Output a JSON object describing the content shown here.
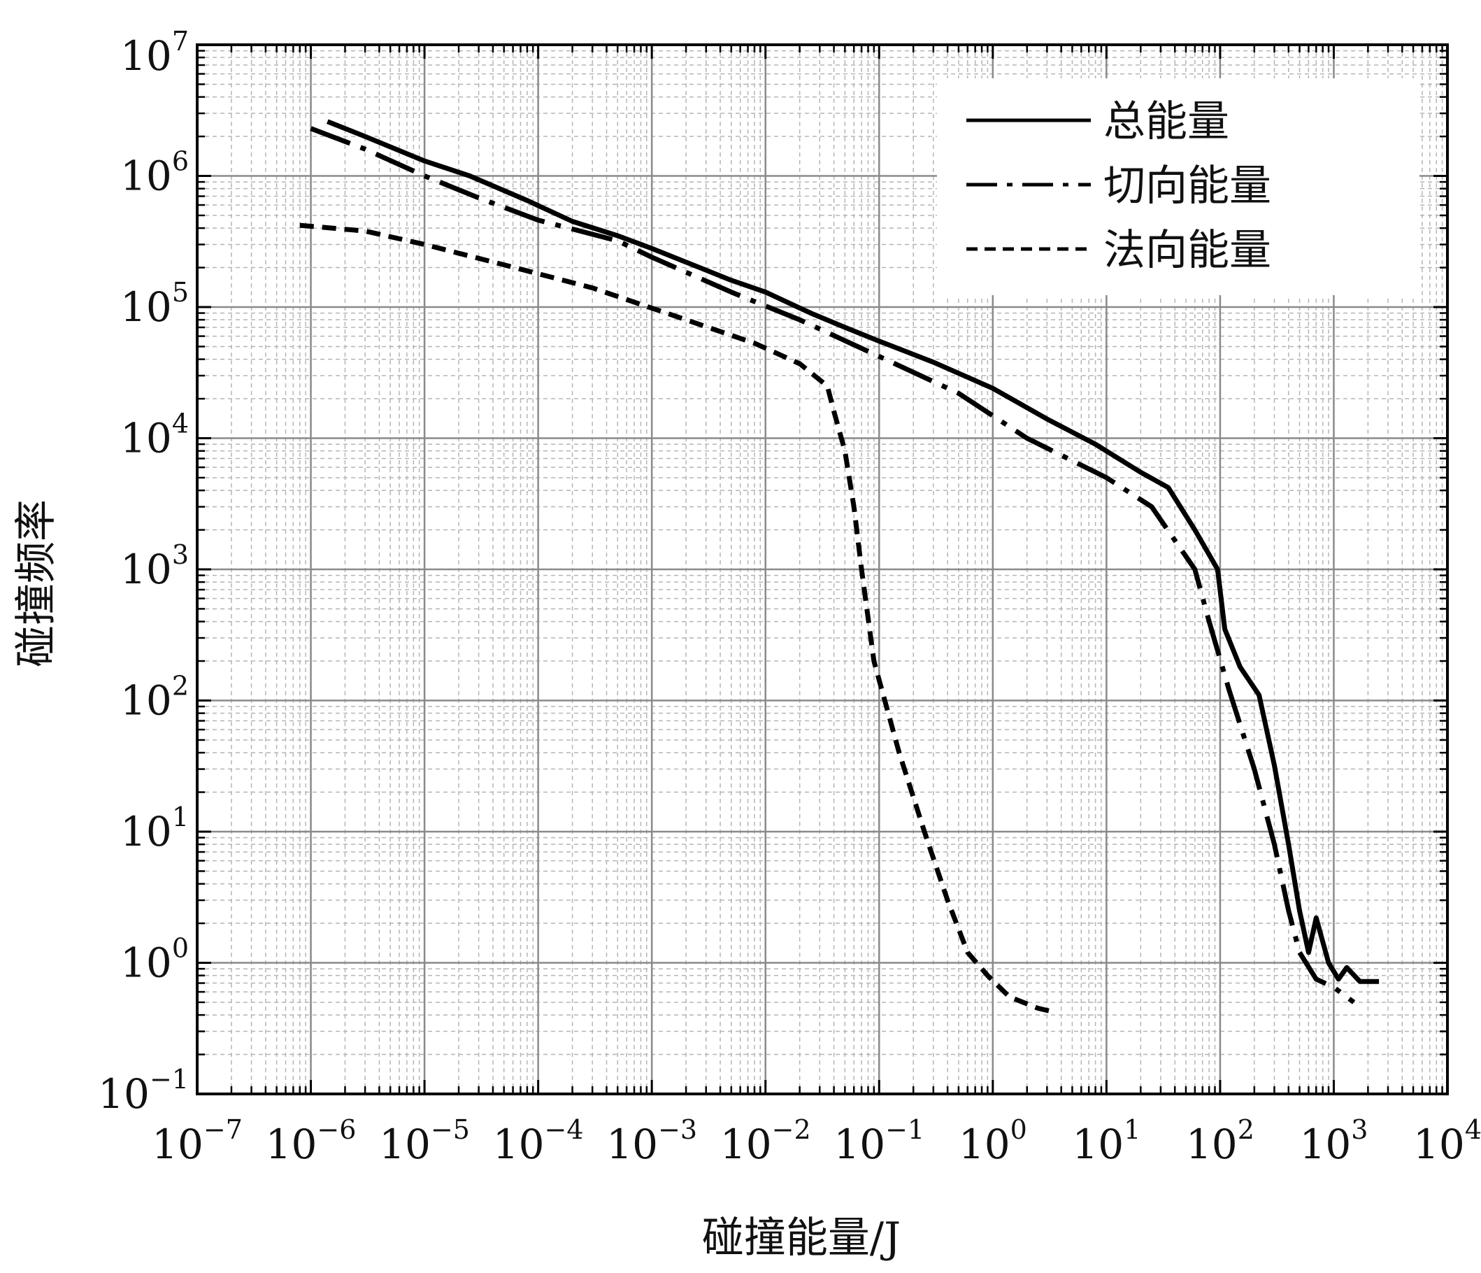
{
  "chart_data": {
    "type": "line",
    "xlabel": "碰撞能量/J",
    "ylabel": "碰撞频率",
    "x_scale": "log",
    "y_scale": "log",
    "xlim": [
      1e-07,
      10000
    ],
    "ylim": [
      0.1,
      10000000
    ],
    "grid": "major and minor",
    "legend_position": "top-right",
    "x_ticks": [
      {
        "exp": -7,
        "base": "10",
        "sup": "−7"
      },
      {
        "exp": -6,
        "base": "10",
        "sup": "−6"
      },
      {
        "exp": -5,
        "base": "10",
        "sup": "−5"
      },
      {
        "exp": -4,
        "base": "10",
        "sup": "−4"
      },
      {
        "exp": -3,
        "base": "10",
        "sup": "−3"
      },
      {
        "exp": -2,
        "base": "10",
        "sup": "−2"
      },
      {
        "exp": -1,
        "base": "10",
        "sup": "−1"
      },
      {
        "exp": 0,
        "base": "10",
        "sup": "0"
      },
      {
        "exp": 1,
        "base": "10",
        "sup": "1"
      },
      {
        "exp": 2,
        "base": "10",
        "sup": "2"
      },
      {
        "exp": 3,
        "base": "10",
        "sup": "3"
      },
      {
        "exp": 4,
        "base": "10",
        "sup": "4"
      }
    ],
    "y_ticks": [
      {
        "exp": -1,
        "base": "10",
        "sup": "−1"
      },
      {
        "exp": 0,
        "base": "10",
        "sup": "0"
      },
      {
        "exp": 1,
        "base": "10",
        "sup": "1"
      },
      {
        "exp": 2,
        "base": "10",
        "sup": "2"
      },
      {
        "exp": 3,
        "base": "10",
        "sup": "3"
      },
      {
        "exp": 4,
        "base": "10",
        "sup": "4"
      },
      {
        "exp": 5,
        "base": "10",
        "sup": "5"
      },
      {
        "exp": 6,
        "base": "10",
        "sup": "6"
      },
      {
        "exp": 7,
        "base": "10",
        "sup": "7"
      }
    ],
    "series": [
      {
        "name": "总能量",
        "style": "solid",
        "color": "#000000",
        "points": [
          [
            1.4e-06,
            2600000.0
          ],
          [
            3e-06,
            2000000.0
          ],
          [
            1e-05,
            1300000.0
          ],
          [
            2.5e-05,
            1000000.0
          ],
          [
            8e-05,
            650000.0
          ],
          [
            0.0002,
            450000.0
          ],
          [
            0.0005,
            350000.0
          ],
          [
            0.001,
            280000.0
          ],
          [
            0.005,
            160000.0
          ],
          [
            0.01,
            130000.0
          ],
          [
            0.025,
            90000.0
          ],
          [
            0.05,
            70000.0
          ],
          [
            0.1,
            55000.0
          ],
          [
            0.3,
            38000.0
          ],
          [
            1,
            24000.0
          ],
          [
            3,
            14000.0
          ],
          [
            8,
            9000.0
          ],
          [
            20,
            5500.0
          ],
          [
            35,
            4200.0
          ],
          [
            60,
            2000.0
          ],
          [
            95,
            1000.0
          ],
          [
            110,
            350.0
          ],
          [
            150,
            180.0
          ],
          [
            220,
            110.0
          ],
          [
            300,
            32.0
          ],
          [
            400,
            8
          ],
          [
            500,
            2.5
          ],
          [
            600,
            1.2
          ],
          [
            700,
            2.2
          ],
          [
            900,
            1.0
          ],
          [
            1100,
            0.75
          ],
          [
            1300,
            0.92
          ],
          [
            1700,
            0.72
          ],
          [
            2500,
            0.72
          ]
        ]
      },
      {
        "name": "切向能量",
        "style": "dashdot",
        "color": "#000000",
        "points": [
          [
            1e-06,
            2300000.0
          ],
          [
            3e-06,
            1600000.0
          ],
          [
            1e-05,
            1000000.0
          ],
          [
            3e-05,
            680000.0
          ],
          [
            0.0001,
            460000.0
          ],
          [
            0.0005,
            320000.0
          ],
          [
            0.001,
            240000.0
          ],
          [
            0.005,
            130000.0
          ],
          [
            0.02,
            80000.0
          ],
          [
            0.1,
            42000.0
          ],
          [
            0.5,
            22000.0
          ],
          [
            2,
            10000.0
          ],
          [
            10,
            5000.0
          ],
          [
            25,
            3000.0
          ],
          [
            60,
            1000.0
          ],
          [
            80,
            400.0
          ],
          [
            120,
            120.0
          ],
          [
            200,
            30.0
          ],
          [
            300,
            8
          ],
          [
            400,
            2.5
          ],
          [
            500,
            1.2
          ],
          [
            700,
            0.75
          ],
          [
            1000,
            0.65
          ],
          [
            1500,
            0.5
          ]
        ]
      },
      {
        "name": "法向能量",
        "style": "dashed",
        "color": "#000000",
        "points": [
          [
            8e-07,
            420000.0
          ],
          [
            3e-06,
            380000.0
          ],
          [
            1e-05,
            300000.0
          ],
          [
            5e-05,
            210000.0
          ],
          [
            0.0003,
            140000.0
          ],
          [
            0.002,
            80000.0
          ],
          [
            0.008,
            53000.0
          ],
          [
            0.02,
            37000.0
          ],
          [
            0.035,
            25000.0
          ],
          [
            0.04,
            16000.0
          ],
          [
            0.05,
            8000.0
          ],
          [
            0.06,
            3000.0
          ],
          [
            0.07,
            1000.0
          ],
          [
            0.09,
            200.0
          ],
          [
            0.15,
            40.0
          ],
          [
            0.25,
            10.0
          ],
          [
            0.4,
            3
          ],
          [
            0.6,
            1.2
          ],
          [
            0.9,
            0.8
          ],
          [
            1.4,
            0.55
          ],
          [
            2.5,
            0.45
          ],
          [
            3.5,
            0.42
          ]
        ]
      }
    ]
  }
}
